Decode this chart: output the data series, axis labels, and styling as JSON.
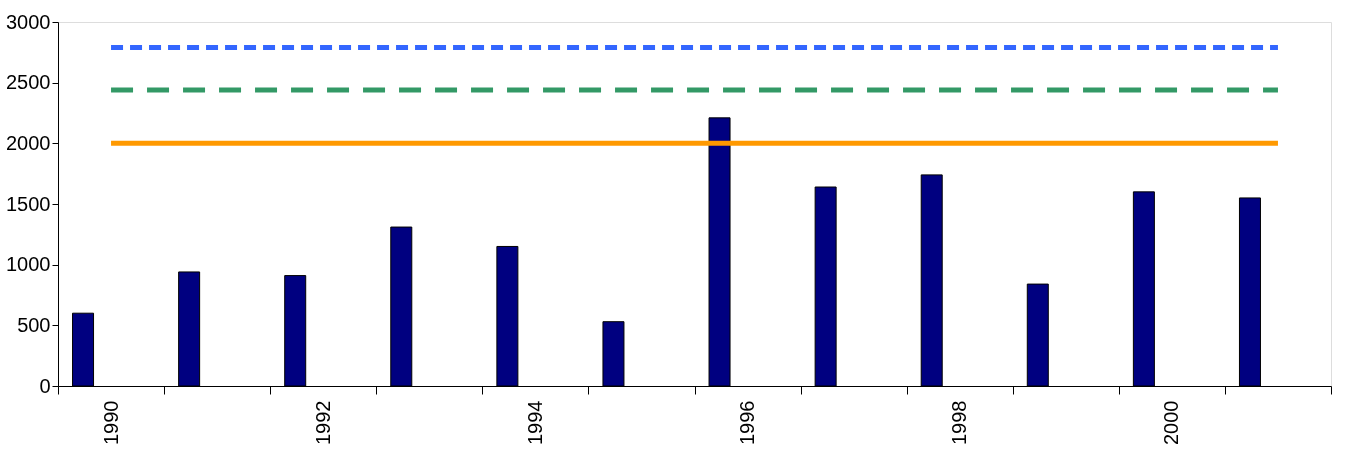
{
  "chart_data": {
    "type": "bar",
    "categories": [
      "1990",
      null,
      "1992",
      null,
      "1994",
      null,
      "1996",
      null,
      "1998",
      null,
      "2000",
      null
    ],
    "series": [
      {
        "color": "#000080",
        "values": [
          600,
          940,
          910,
          1310,
          1150,
          530,
          2210,
          1640,
          1740,
          840,
          1600,
          1550
        ]
      },
      {
        "type": "line",
        "color": "#3366ff",
        "line_style": "dotted",
        "values": [
          2790,
          2790,
          2790,
          2790,
          2790,
          2790,
          2790,
          2790,
          2790,
          2790,
          2790,
          2790
        ]
      },
      {
        "type": "line",
        "color": "#339966",
        "line_style": "dashed",
        "values": [
          2440,
          2440,
          2440,
          2440,
          2440,
          2440,
          2440,
          2440,
          2440,
          2440,
          2440,
          2440
        ]
      },
      {
        "type": "line",
        "color": "#ff9900",
        "line_style": "solid",
        "values": [
          2000,
          2000,
          2000,
          2000,
          2000,
          2000,
          2000,
          2000,
          2000,
          2000,
          2000,
          2000
        ]
      }
    ],
    "ylim": [
      0,
      3000
    ],
    "yticks": [
      0,
      500,
      1000,
      1500,
      2000,
      2500,
      3000
    ],
    "grid": false
  }
}
